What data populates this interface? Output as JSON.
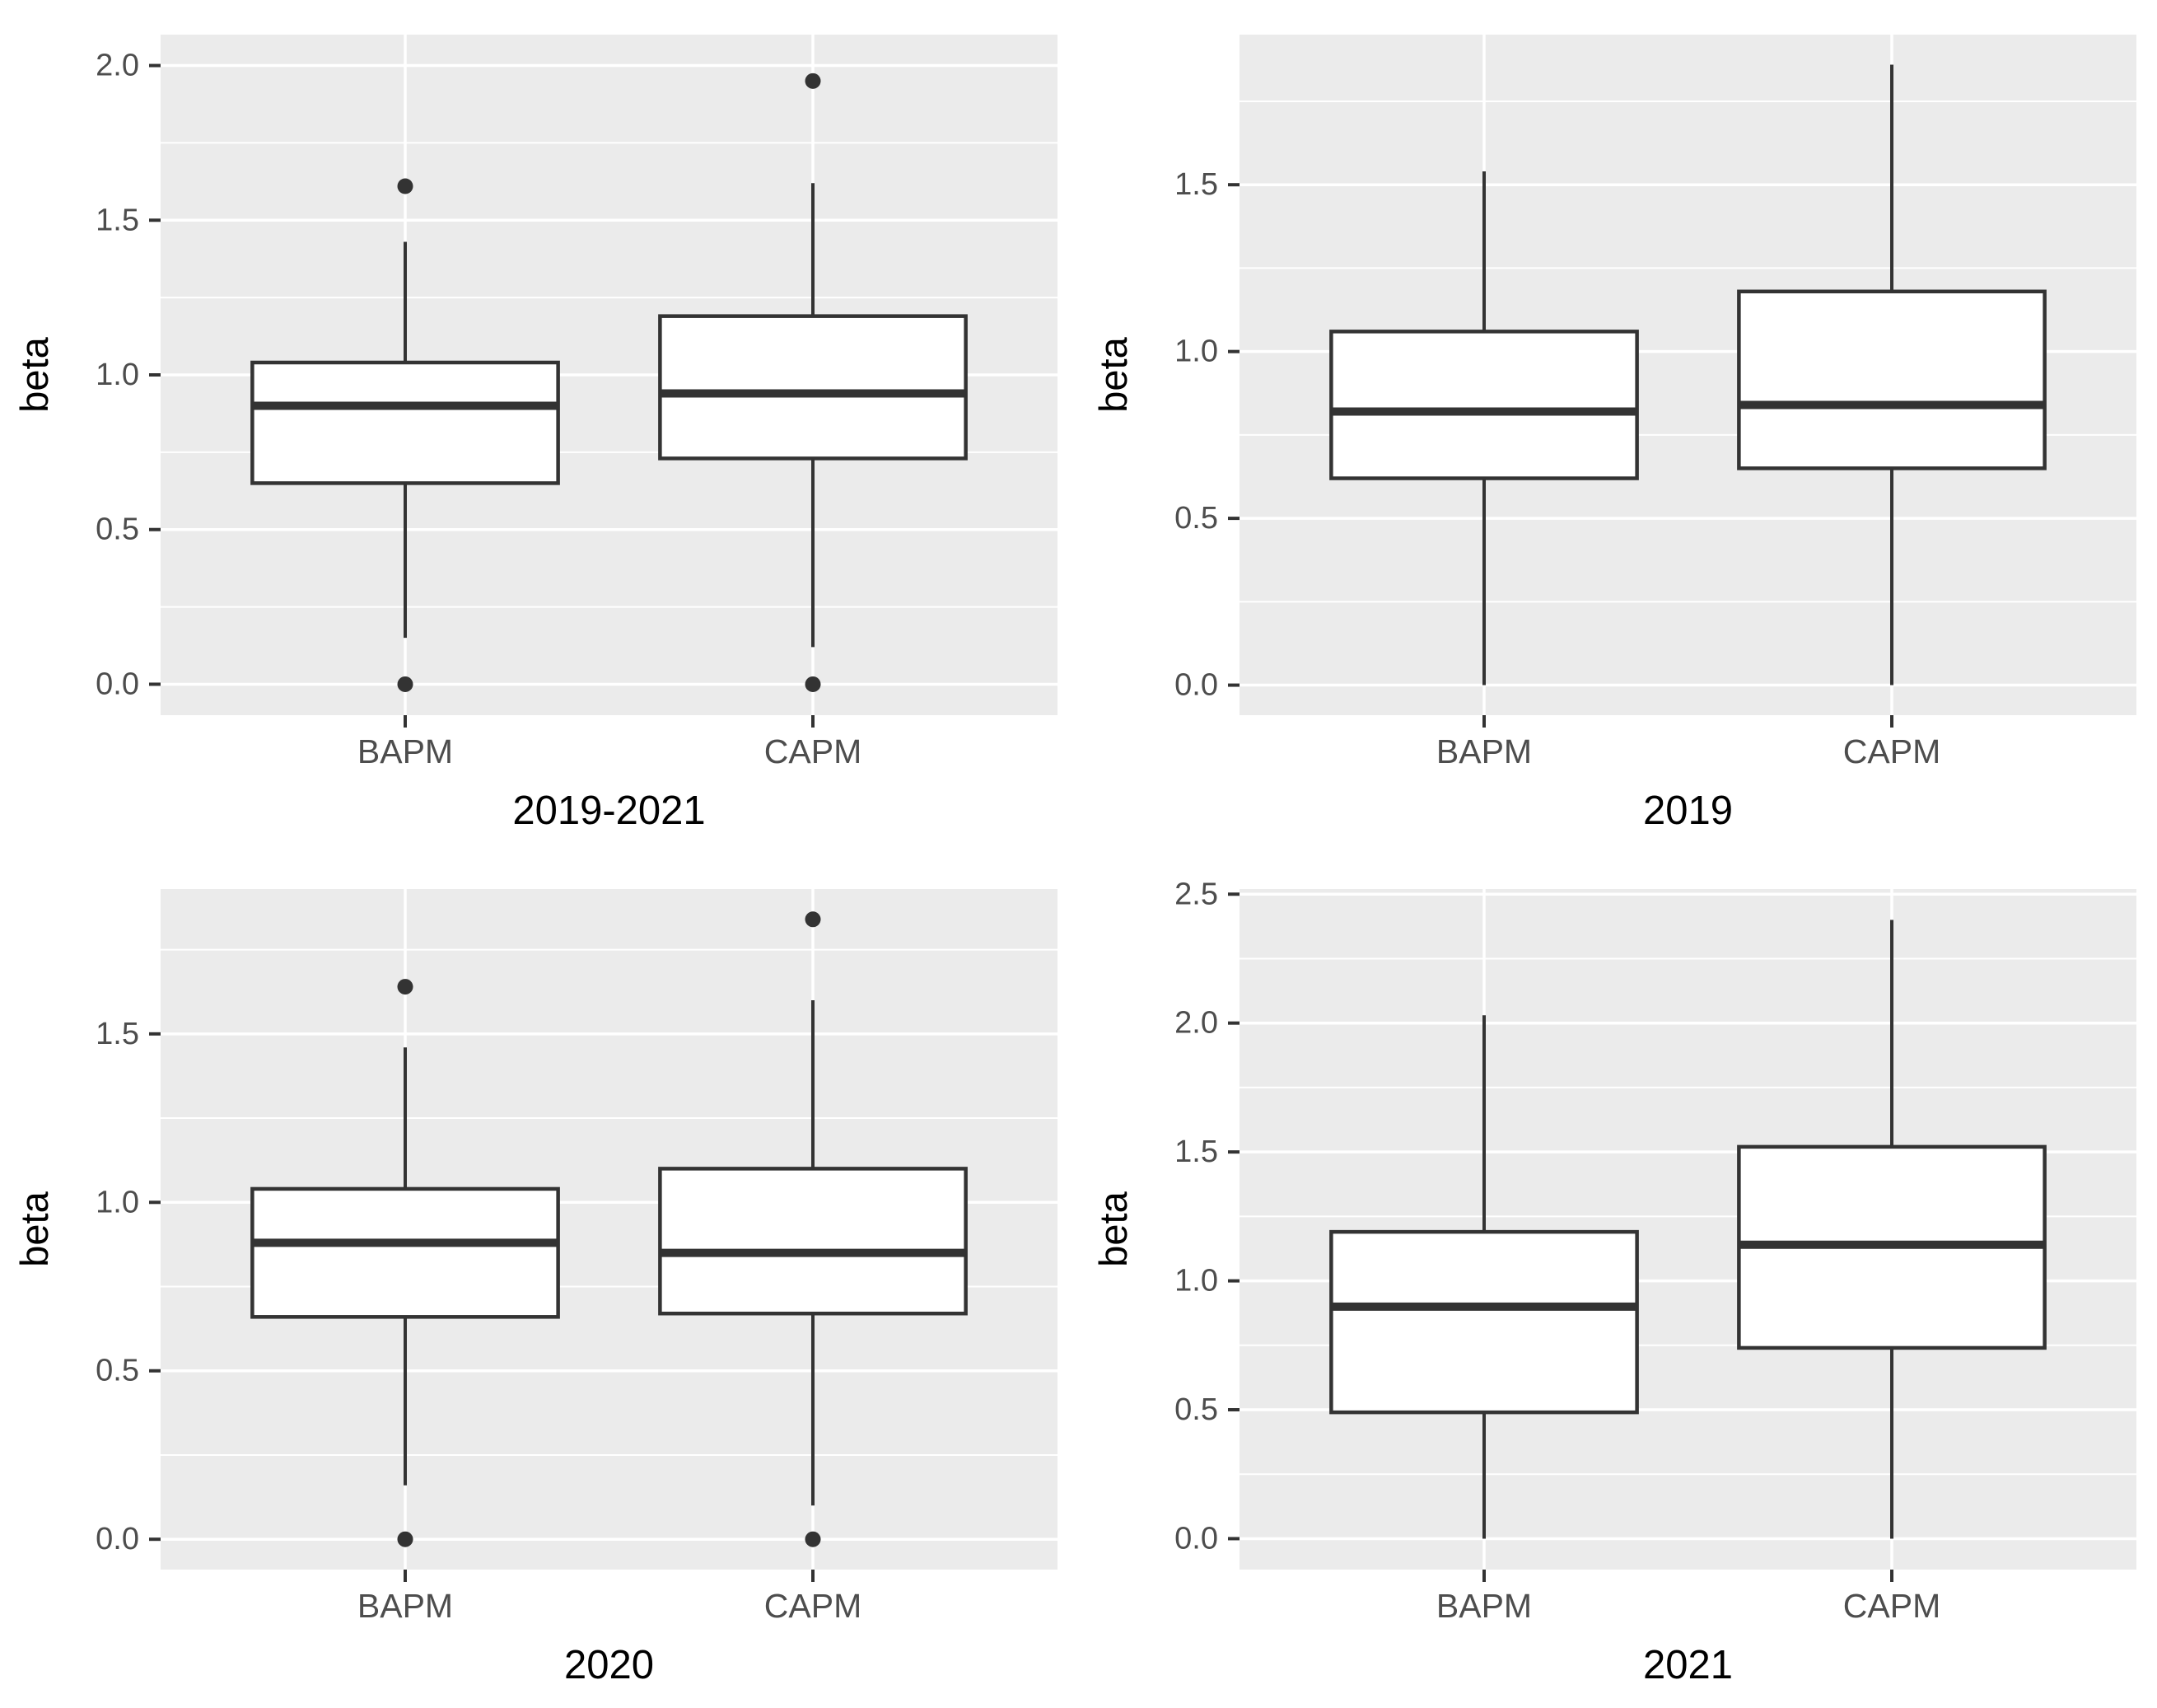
{
  "style": {
    "panel_background": "#EBEBEB",
    "grid_color": "#FFFFFF",
    "box_fill": "#FFFFFF",
    "box_stroke": "#333333",
    "tick_label_color": "#4D4D4D",
    "axis_title_color": "#000000",
    "outlier_color": "#333333"
  },
  "chart_data": [
    {
      "type": "boxplot",
      "title": "2019-2021",
      "ylabel": "beta",
      "categories": [
        "BAPM",
        "CAPM"
      ],
      "ylim": [
        -0.1,
        2.1
      ],
      "yticks": [
        0.0,
        0.5,
        1.0,
        1.5,
        2.0
      ],
      "grid": true,
      "series": [
        {
          "name": "BAPM",
          "whisker_low": 0.15,
          "q1": 0.65,
          "median": 0.9,
          "q3": 1.04,
          "whisker_high": 1.43,
          "outliers": [
            1.61,
            0.0
          ]
        },
        {
          "name": "CAPM",
          "whisker_low": 0.12,
          "q1": 0.73,
          "median": 0.94,
          "q3": 1.19,
          "whisker_high": 1.62,
          "outliers": [
            1.95,
            0.0
          ]
        }
      ]
    },
    {
      "type": "boxplot",
      "title": "2019",
      "ylabel": "beta",
      "categories": [
        "BAPM",
        "CAPM"
      ],
      "ylim": [
        -0.09,
        1.95
      ],
      "yticks": [
        0.0,
        0.5,
        1.0,
        1.5
      ],
      "grid": true,
      "series": [
        {
          "name": "BAPM",
          "whisker_low": 0.0,
          "q1": 0.62,
          "median": 0.82,
          "q3": 1.06,
          "whisker_high": 1.54,
          "outliers": []
        },
        {
          "name": "CAPM",
          "whisker_low": 0.0,
          "q1": 0.65,
          "median": 0.84,
          "q3": 1.18,
          "whisker_high": 1.86,
          "outliers": []
        }
      ]
    },
    {
      "type": "boxplot",
      "title": "2020",
      "ylabel": "beta",
      "categories": [
        "BAPM",
        "CAPM"
      ],
      "ylim": [
        -0.09,
        1.93
      ],
      "yticks": [
        0.0,
        0.5,
        1.0,
        1.5
      ],
      "grid": true,
      "series": [
        {
          "name": "BAPM",
          "whisker_low": 0.16,
          "q1": 0.66,
          "median": 0.88,
          "q3": 1.04,
          "whisker_high": 1.46,
          "outliers": [
            1.64,
            0.0
          ]
        },
        {
          "name": "CAPM",
          "whisker_low": 0.1,
          "q1": 0.67,
          "median": 0.85,
          "q3": 1.1,
          "whisker_high": 1.6,
          "outliers": [
            1.84,
            0.0
          ]
        }
      ]
    },
    {
      "type": "boxplot",
      "title": "2021",
      "ylabel": "beta",
      "categories": [
        "BAPM",
        "CAPM"
      ],
      "ylim": [
        -0.12,
        2.52
      ],
      "yticks": [
        0.0,
        0.5,
        1.0,
        1.5,
        2.0,
        2.5
      ],
      "grid": true,
      "series": [
        {
          "name": "BAPM",
          "whisker_low": 0.0,
          "q1": 0.49,
          "median": 0.9,
          "q3": 1.19,
          "whisker_high": 2.03,
          "outliers": []
        },
        {
          "name": "CAPM",
          "whisker_low": 0.0,
          "q1": 0.74,
          "median": 1.14,
          "q3": 1.52,
          "whisker_high": 2.4,
          "outliers": []
        }
      ]
    }
  ]
}
